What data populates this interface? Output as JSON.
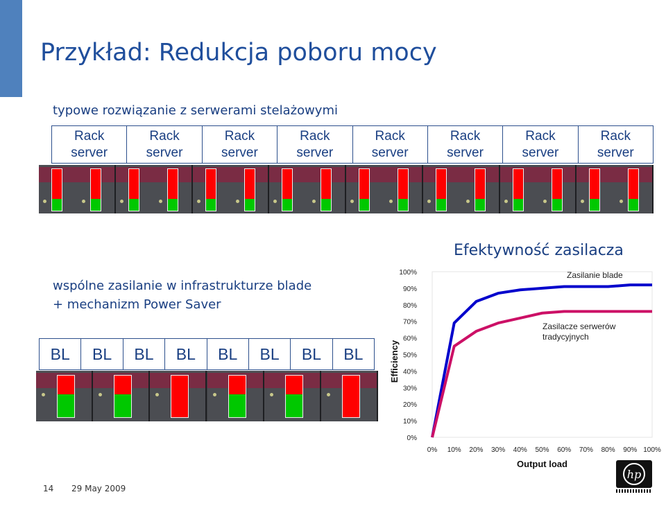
{
  "slide": {
    "title": "Przykład: Redukcja poboru mocy",
    "traditional_heading": "typowe rozwiązanie z serwerami stelażowymi",
    "rack_labels": [
      [
        "Rack",
        "server"
      ],
      [
        "Rack",
        "server"
      ],
      [
        "Rack",
        "server"
      ],
      [
        "Rack",
        "server"
      ],
      [
        "Rack",
        "server"
      ],
      [
        "Rack",
        "server"
      ],
      [
        "Rack",
        "server"
      ],
      [
        "Rack",
        "server"
      ]
    ],
    "blade_heading_line1": "wspólne zasilanie w infrastrukturze blade",
    "blade_heading_line2": "+ mechanizm Power Saver",
    "blade_labels": [
      "BL",
      "BL",
      "BL",
      "BL",
      "BL",
      "BL",
      "BL",
      "BL"
    ],
    "rack_power_levels": [
      [
        0.72,
        0.28
      ],
      [
        0.72,
        0.28
      ],
      [
        0.72,
        0.28
      ],
      [
        0.72,
        0.28
      ],
      [
        0.72,
        0.28
      ],
      [
        0.72,
        0.28
      ],
      [
        0.72,
        0.28
      ],
      [
        0.72,
        0.28
      ],
      [
        0.72,
        0.28
      ],
      [
        0.72,
        0.28
      ],
      [
        0.72,
        0.28
      ],
      [
        0.72,
        0.28
      ],
      [
        0.72,
        0.28
      ],
      [
        0.72,
        0.28
      ],
      [
        0.72,
        0.28
      ],
      [
        0.72,
        0.28
      ]
    ],
    "blade_power_levels": [
      [
        0.45,
        0.55
      ],
      [
        0.45,
        0.55
      ],
      [
        1.0,
        0.0
      ],
      [
        0.45,
        0.55
      ],
      [
        0.45,
        0.55
      ],
      [
        1.0,
        0.0
      ]
    ],
    "colors": {
      "used": "#ff0000",
      "free": "#00c800",
      "accent": "#4f81bd",
      "text": "#1a3f82"
    },
    "footer_page": "14",
    "footer_date": "29 May 2009",
    "logo_icon": "hp-logo-icon"
  },
  "chart_data": {
    "type": "line",
    "title": "Efektywność zasilacza",
    "xlabel": "Output load",
    "ylabel": "Efficiency",
    "x_ticks": [
      "0%",
      "10%",
      "20%",
      "30%",
      "40%",
      "50%",
      "60%",
      "70%",
      "80%",
      "90%",
      "100%"
    ],
    "y_ticks": [
      "0%",
      "10%",
      "20%",
      "30%",
      "40%",
      "50%",
      "60%",
      "70%",
      "80%",
      "90%",
      "100%"
    ],
    "xlim": [
      0,
      100
    ],
    "ylim": [
      0,
      100
    ],
    "grid": false,
    "series": [
      {
        "name": "Zasilanie blade",
        "color": "#0000cc",
        "x": [
          0,
          10,
          20,
          30,
          40,
          50,
          60,
          70,
          80,
          90,
          100
        ],
        "y": [
          0,
          69,
          82,
          87,
          89,
          90,
          91,
          91,
          91,
          92,
          92
        ]
      },
      {
        "name": "Zasilacze serwerów tradycyjnych",
        "color": "#cc1066",
        "x": [
          0,
          10,
          20,
          30,
          40,
          50,
          60,
          70,
          80,
          90,
          100
        ],
        "y": [
          0,
          55,
          64,
          69,
          72,
          75,
          76,
          76,
          76,
          76,
          76
        ]
      }
    ]
  }
}
